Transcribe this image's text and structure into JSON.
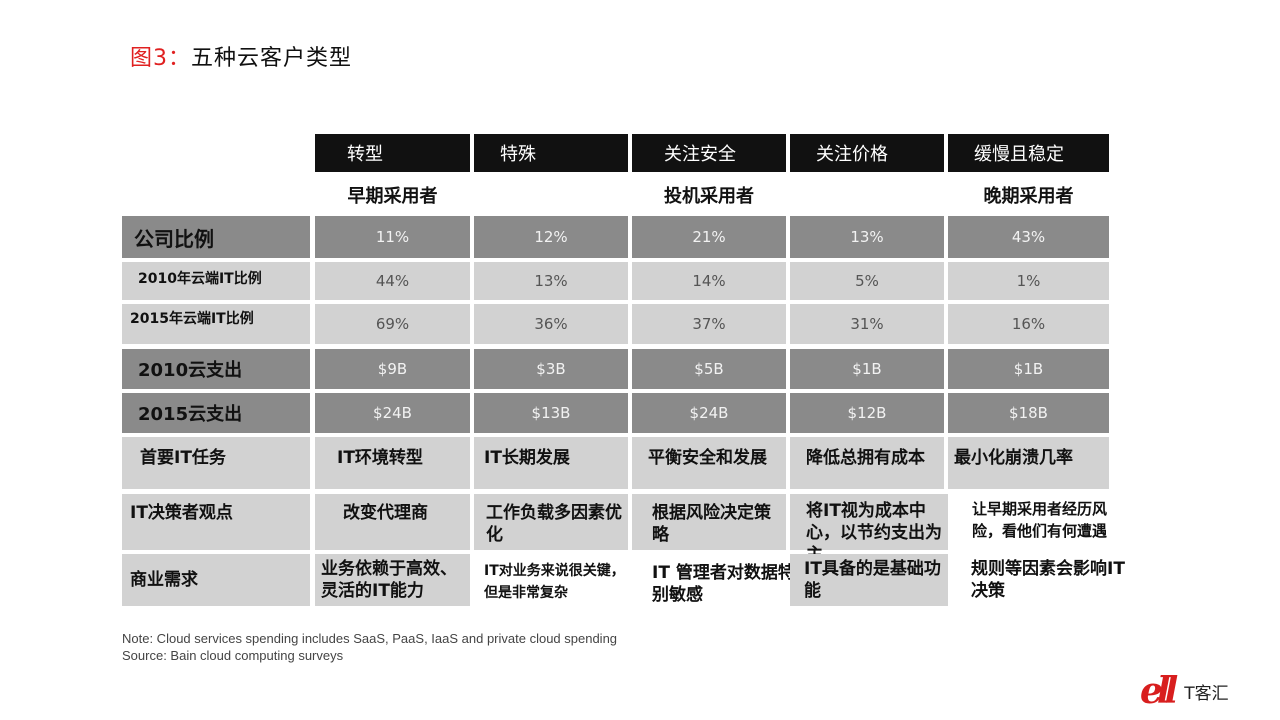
{
  "title": {
    "number": "图3：",
    "text": "五种云客户类型"
  },
  "columns": [
    "转型",
    "特殊",
    "关注安全",
    "关注价格",
    "缓慢且稳定"
  ],
  "adopters": {
    "early": "早期采用者",
    "speculative": "投机采用者",
    "late": "晚期采用者"
  },
  "rows": [
    {
      "label": "公司比例",
      "values": [
        "11%",
        "12%",
        "21%",
        "13%",
        "43%"
      ]
    },
    {
      "label": "2010年云端IT比例",
      "values": [
        "44%",
        "13%",
        "14%",
        "5%",
        "1%"
      ]
    },
    {
      "label": "2015年云端IT比例",
      "values": [
        "69%",
        "36%",
        "37%",
        "31%",
        "16%"
      ]
    },
    {
      "label": "2010云支出",
      "values": [
        "$9B",
        "$3B",
        "$5B",
        "$1B",
        "$1B"
      ]
    },
    {
      "label": "2015云支出",
      "values": [
        "$24B",
        "$13B",
        "$24B",
        "$12B",
        "$18B"
      ]
    },
    {
      "label": "首要IT任务",
      "values": [
        "IT环境转型",
        "IT长期发展",
        "平衡安全和发展",
        "降低总拥有成本",
        "最小化崩溃几率"
      ]
    },
    {
      "label": "IT决策者观点",
      "values": [
        "改变代理商",
        "工作负载多因素优化",
        "根据风险决定策略",
        "将IT视为成本中心，以节约支出为主",
        "让早期采用者经历风险，看他们有何遭遇"
      ]
    },
    {
      "label": "商业需求",
      "values": [
        "业务依赖于高效、灵活的IT能力",
        "IT对业务来说很关键，但是非常复杂",
        "IT 管理者对数据特别敏感",
        "IT具备的是基础功能",
        "规则等因素会影响IT 决策"
      ]
    }
  ],
  "notes": {
    "line1": "Note: Cloud services spending includes SaaS, PaaS, IaaS and private cloud spending",
    "line2": "Source: Bain cloud computing surveys"
  },
  "logo": {
    "mark": "ell",
    "brand": "T客汇"
  },
  "colors": {
    "title_accent": "#e02020",
    "header_bg": "#111111",
    "dark_row": "#8a8a8a",
    "light_row": "#d2d2d2",
    "logo_red": "#d81e1e"
  }
}
